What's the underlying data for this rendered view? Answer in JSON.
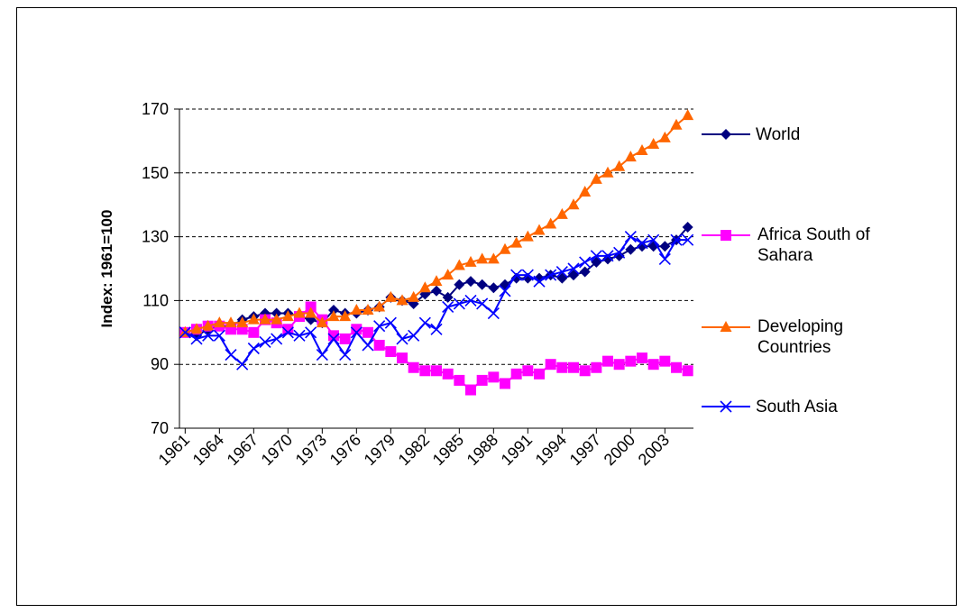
{
  "chart_data": {
    "type": "line",
    "y_label": "Index: 1961=100",
    "x": [
      1961,
      1962,
      1963,
      1964,
      1965,
      1966,
      1967,
      1968,
      1969,
      1970,
      1971,
      1972,
      1973,
      1974,
      1975,
      1976,
      1977,
      1978,
      1979,
      1980,
      1981,
      1982,
      1983,
      1984,
      1985,
      1986,
      1987,
      1988,
      1989,
      1990,
      1991,
      1992,
      1993,
      1994,
      1995,
      1996,
      1997,
      1998,
      1999,
      2000,
      2001,
      2002,
      2003,
      2004,
      2005
    ],
    "xlim": [
      1960.5,
      2005.5
    ],
    "xticks": [
      1961,
      1964,
      1967,
      1970,
      1973,
      1976,
      1979,
      1982,
      1985,
      1988,
      1991,
      1994,
      1997,
      2000,
      2003
    ],
    "ylim": [
      70,
      170
    ],
    "yticks": [
      70,
      90,
      110,
      130,
      150,
      170
    ],
    "grid": true,
    "legend": "right",
    "series": [
      {
        "name": "World",
        "color": "#000080",
        "marker": "diamond",
        "values": [
          100,
          99,
          101,
          102,
          102,
          104,
          105,
          106,
          106,
          106,
          105,
          104,
          103,
          107,
          106,
          106,
          107,
          108,
          111,
          110,
          109,
          112,
          113,
          111,
          115,
          116,
          115,
          114,
          115,
          117,
          117,
          117,
          118,
          117,
          118,
          119,
          122,
          123,
          124,
          126,
          127,
          127,
          127,
          129,
          133
        ]
      },
      {
        "name": "Africa South of Sahara",
        "color": "#FF00FF",
        "marker": "square",
        "values": [
          100,
          101,
          102,
          102,
          101,
          101,
          100,
          104,
          103,
          101,
          105,
          108,
          104,
          99,
          98,
          101,
          100,
          96,
          94,
          92,
          89,
          88,
          88,
          87,
          85,
          82,
          85,
          86,
          84,
          87,
          88,
          87,
          90,
          89,
          89,
          88,
          89,
          91,
          90,
          91,
          92,
          90,
          91,
          89,
          88
        ]
      },
      {
        "name": "Developing Countries",
        "color": "#FF6600",
        "marker": "triangle",
        "values": [
          100,
          101,
          102,
          103,
          103,
          103,
          104,
          104,
          104,
          105,
          106,
          106,
          103,
          105,
          105,
          107,
          107,
          108,
          111,
          110,
          111,
          114,
          116,
          118,
          121,
          122,
          123,
          123,
          126,
          128,
          130,
          132,
          134,
          137,
          140,
          144,
          148,
          150,
          152,
          155,
          157,
          159,
          161,
          165,
          168
        ]
      },
      {
        "name": "South Asia",
        "color": "#0000FF",
        "marker": "x",
        "values": [
          100,
          98,
          99,
          99,
          93,
          90,
          95,
          97,
          98,
          100,
          99,
          100,
          93,
          98,
          93,
          100,
          96,
          102,
          103,
          98,
          99,
          103,
          101,
          108,
          109,
          110,
          109,
          106,
          113,
          118,
          118,
          116,
          118,
          119,
          120,
          122,
          124,
          124,
          125,
          130,
          128,
          129,
          123,
          129,
          129
        ]
      }
    ]
  }
}
